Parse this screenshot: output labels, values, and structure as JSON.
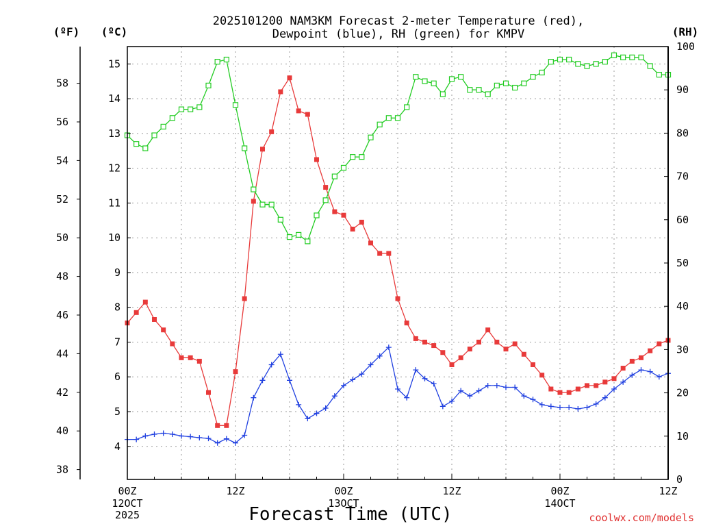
{
  "chart_data": {
    "type": "line",
    "title_line1": "2025101200 NAM3KM Forecast 2-meter Temperature (red),",
    "title_line2": "Dewpoint (blue), RH (green) for KMPV",
    "xlabel": "Forecast Time (UTC)",
    "unit_left_f": "(ºF)",
    "unit_left_c": "(ºC)",
    "unit_right": "(RH)",
    "credit": "coolwx.com/models",
    "x_unit": "forecast hour",
    "xlim": [
      0,
      60
    ],
    "ylim_c": [
      3.05,
      15.5
    ],
    "ylim_rh": [
      0,
      100
    ],
    "c_ticks": [
      "4",
      "5",
      "6",
      "7",
      "8",
      "9",
      "10",
      "11",
      "12",
      "13",
      "14",
      "15"
    ],
    "f_ticks": [
      "38",
      "40",
      "42",
      "44",
      "46",
      "48",
      "50",
      "52",
      "54",
      "56",
      "58"
    ],
    "rh_ticks": [
      "0",
      "10",
      "20",
      "30",
      "40",
      "50",
      "60",
      "70",
      "80",
      "90",
      "100"
    ],
    "x_ticks": [
      {
        "hour": 0,
        "label": "00Z",
        "day": "12OCT",
        "year": "2025"
      },
      {
        "hour": 12,
        "label": "12Z",
        "day": "",
        "year": ""
      },
      {
        "hour": 24,
        "label": "00Z",
        "day": "13OCT",
        "year": ""
      },
      {
        "hour": 36,
        "label": "12Z",
        "day": "",
        "year": ""
      },
      {
        "hour": 48,
        "label": "00Z",
        "day": "14OCT",
        "year": ""
      },
      {
        "hour": 60,
        "label": "12Z",
        "day": "",
        "year": ""
      }
    ],
    "series": [
      {
        "name": "Temperature",
        "axis": "C",
        "color": "#e83a3a",
        "marker": "filled-square",
        "values": [
          7.55,
          7.85,
          8.15,
          7.65,
          7.35,
          6.95,
          6.55,
          6.55,
          6.45,
          5.55,
          4.6,
          4.6,
          6.15,
          8.25,
          11.05,
          12.55,
          13.05,
          14.2,
          14.6,
          13.65,
          13.55,
          12.25,
          11.45,
          10.75,
          10.65,
          10.25,
          10.45,
          9.85,
          9.55,
          9.55,
          8.25,
          7.55,
          7.1,
          7.0,
          6.9,
          6.7,
          6.35,
          6.55,
          6.8,
          7.0,
          7.35,
          7.0,
          6.8,
          6.95,
          6.65,
          6.35,
          6.05,
          5.65,
          5.55,
          5.55,
          5.65,
          5.75,
          5.75,
          5.85,
          5.95,
          6.25,
          6.45,
          6.55,
          6.75,
          6.95,
          7.05
        ]
      },
      {
        "name": "Dewpoint",
        "axis": "C",
        "color": "#2040e0",
        "marker": "plus",
        "values": [
          4.2,
          4.2,
          4.3,
          4.35,
          4.38,
          4.35,
          4.3,
          4.28,
          4.25,
          4.23,
          4.1,
          4.22,
          4.1,
          4.32,
          5.4,
          5.9,
          6.35,
          6.65,
          5.9,
          5.2,
          4.8,
          4.95,
          5.1,
          5.45,
          5.75,
          5.92,
          6.08,
          6.35,
          6.6,
          6.85,
          5.65,
          5.4,
          6.2,
          5.95,
          5.8,
          5.15,
          5.3,
          5.6,
          5.45,
          5.6,
          5.75,
          5.75,
          5.7,
          5.7,
          5.45,
          5.35,
          5.2,
          5.15,
          5.12,
          5.12,
          5.08,
          5.12,
          5.22,
          5.4,
          5.65,
          5.85,
          6.05,
          6.2,
          6.15,
          6.0,
          6.1
        ]
      },
      {
        "name": "RH",
        "axis": "RH",
        "color": "#22cc22",
        "marker": "open-square",
        "values": [
          79.5,
          77.5,
          76.5,
          79.5,
          81.5,
          83.5,
          85.5,
          85.5,
          86,
          91,
          96.5,
          97,
          86.5,
          76.5,
          67,
          63.5,
          63.5,
          60,
          56,
          56.5,
          55,
          61,
          64.5,
          70,
          72,
          74.5,
          74.5,
          79,
          82,
          83.5,
          83.5,
          86,
          93,
          92,
          91.5,
          89,
          92.5,
          93,
          90,
          90,
          89,
          91,
          91.5,
          90.5,
          91.5,
          93,
          94,
          96.5,
          97,
          97,
          96,
          95.5,
          96,
          96.5,
          98,
          97.5,
          97.5,
          97.5,
          95.5,
          93.5,
          93.5
        ]
      }
    ]
  }
}
